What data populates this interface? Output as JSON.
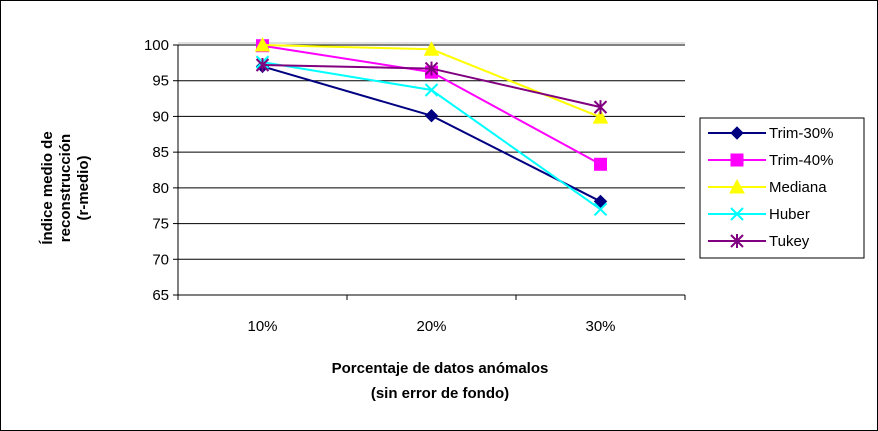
{
  "chart_data": {
    "type": "line",
    "categories": [
      "10%",
      "20%",
      "30%"
    ],
    "ylim": [
      65,
      100
    ],
    "yticks": [
      100,
      95,
      90,
      85,
      80,
      75,
      70,
      65
    ],
    "grid": "horizontal",
    "legend": "right",
    "xlabel": [
      "Porcentaje de datos anómalos",
      "(sin error de fondo)"
    ],
    "ylabel": [
      "Índice medio de",
      "reconstrucción",
      "(r-medio)"
    ],
    "series": [
      {
        "name": "Trim-30%",
        "values": [
          97.0,
          90.1,
          78.1
        ],
        "color": "#000080",
        "marker": "diamond"
      },
      {
        "name": "Trim-40%",
        "values": [
          99.9,
          96.2,
          83.3
        ],
        "color": "#ff00ff",
        "marker": "square"
      },
      {
        "name": "Mediana",
        "values": [
          100.0,
          99.4,
          89.9
        ],
        "color": "#ffff00",
        "marker": "triangle"
      },
      {
        "name": "Huber",
        "values": [
          97.6,
          93.7,
          77.0
        ],
        "color": "#00ffff",
        "marker": "x"
      },
      {
        "name": "Tukey",
        "values": [
          97.2,
          96.7,
          91.3
        ],
        "color": "#800080",
        "marker": "star"
      }
    ]
  }
}
